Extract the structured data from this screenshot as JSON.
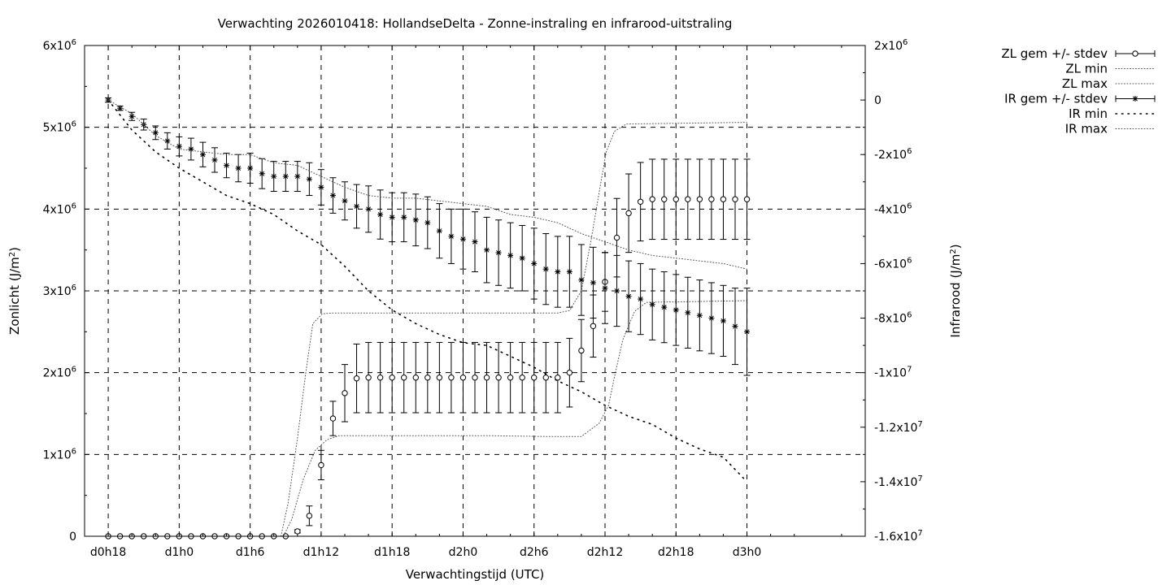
{
  "chart_data": {
    "type": "line",
    "title": "Verwachting 2026010418: HollandseDelta - Zonne-instraling en infrarood-uitstraling",
    "xlabel": "Verwachtingstijd (UTC)",
    "ylabel": "Zonlicht (J/m²)",
    "ylabel_base": "Zonlicht (J/m",
    "ylabel_end": ")",
    "y2label": "Infrarood (J/m²)",
    "y2label_base": "Infrarood (J/m",
    "y2label_end": ")",
    "grid": true,
    "legend_position": "outside-top-right",
    "x_hours_range": [
      16,
      82
    ],
    "x_ticks": [
      {
        "h": 18,
        "label": "d0h18"
      },
      {
        "h": 24,
        "label": "d1h0"
      },
      {
        "h": 30,
        "label": "d1h6"
      },
      {
        "h": 36,
        "label": "d1h12"
      },
      {
        "h": 42,
        "label": "d1h18"
      },
      {
        "h": 48,
        "label": "d2h0"
      },
      {
        "h": 54,
        "label": "d2h6"
      },
      {
        "h": 60,
        "label": "d2h12"
      },
      {
        "h": 66,
        "label": "d2h18"
      },
      {
        "h": 72,
        "label": "d3h0"
      }
    ],
    "ylim": [
      0,
      6000000
    ],
    "y_ticks": [
      {
        "v": 0,
        "m": "0",
        "e": ""
      },
      {
        "v": 1000000,
        "m": "1x10",
        "e": "6"
      },
      {
        "v": 2000000,
        "m": "2x10",
        "e": "6"
      },
      {
        "v": 3000000,
        "m": "3x10",
        "e": "6"
      },
      {
        "v": 4000000,
        "m": "4x10",
        "e": "6"
      },
      {
        "v": 5000000,
        "m": "5x10",
        "e": "6"
      },
      {
        "v": 6000000,
        "m": "6x10",
        "e": "6"
      }
    ],
    "y2lim": [
      -16000000,
      2000000
    ],
    "y2_ticks": [
      {
        "v": 2000000,
        "m": "2x10",
        "e": "6"
      },
      {
        "v": 0,
        "m": "0",
        "e": ""
      },
      {
        "v": -2000000,
        "m": "-2x10",
        "e": "6"
      },
      {
        "v": -4000000,
        "m": "-4x10",
        "e": "6"
      },
      {
        "v": -6000000,
        "m": "-6x10",
        "e": "6"
      },
      {
        "v": -8000000,
        "m": "-8x10",
        "e": "6"
      },
      {
        "v": -10000000,
        "m": "-1x10",
        "e": "7"
      },
      {
        "v": -12000000,
        "m": "-1.2x10",
        "e": "7"
      },
      {
        "v": -14000000,
        "m": "-1.4x10",
        "e": "7"
      },
      {
        "v": -16000000,
        "m": "-1.6x10",
        "e": "7"
      }
    ],
    "hours": [
      18,
      19,
      20,
      21,
      22,
      23,
      24,
      25,
      26,
      27,
      28,
      29,
      30,
      31,
      32,
      33,
      34,
      35,
      36,
      37,
      38,
      39,
      40,
      41,
      42,
      43,
      44,
      45,
      46,
      47,
      48,
      49,
      50,
      51,
      52,
      53,
      54,
      55,
      56,
      57,
      58,
      59,
      60,
      61,
      62,
      63,
      64,
      65,
      66,
      67,
      68,
      69,
      70,
      71,
      72
    ],
    "series": [
      {
        "name": "ZL gem +/- stdev",
        "axis": "y",
        "marker": "circle",
        "mean": [
          0,
          0,
          0,
          0,
          0,
          0,
          0,
          0,
          0,
          0,
          0,
          0,
          0,
          0,
          0,
          0,
          60000,
          250000,
          870000,
          1440000,
          1750000,
          1930000,
          1940000,
          1940000,
          1940000,
          1940000,
          1940000,
          1940000,
          1940000,
          1940000,
          1940000,
          1940000,
          1940000,
          1940000,
          1940000,
          1940000,
          1940000,
          1940000,
          1940000,
          2000000,
          2270000,
          2570000,
          3110000,
          3650000,
          3950000,
          4090000,
          4120000,
          4120000,
          4120000,
          4120000,
          4120000,
          4120000,
          4120000,
          4120000,
          4120000
        ],
        "stdev": [
          0,
          0,
          0,
          0,
          0,
          0,
          0,
          0,
          0,
          0,
          0,
          0,
          0,
          0,
          0,
          0,
          20000,
          120000,
          180000,
          210000,
          350000,
          420000,
          430000,
          430000,
          430000,
          430000,
          430000,
          430000,
          430000,
          430000,
          430000,
          430000,
          430000,
          430000,
          430000,
          430000,
          430000,
          430000,
          430000,
          420000,
          380000,
          380000,
          360000,
          480000,
          480000,
          480000,
          490000,
          490000,
          490000,
          490000,
          490000,
          490000,
          490000,
          490000,
          490000
        ]
      },
      {
        "name": "ZL min",
        "axis": "y",
        "style": "dotted",
        "points": [
          [
            16,
            0
          ],
          [
            32,
            0
          ],
          [
            32.8,
            0
          ],
          [
            33.5,
            200000
          ],
          [
            34.5,
            700000
          ],
          [
            35.5,
            1050000
          ],
          [
            36.5,
            1180000
          ],
          [
            37.5,
            1230000
          ],
          [
            50,
            1230000
          ],
          [
            55,
            1220000
          ],
          [
            58,
            1220000
          ],
          [
            59.5,
            1380000
          ],
          [
            60.3,
            1600000
          ],
          [
            60.8,
            1950000
          ],
          [
            61.5,
            2400000
          ],
          [
            62.5,
            2750000
          ],
          [
            63.5,
            2860000
          ],
          [
            72,
            2880000
          ]
        ]
      },
      {
        "name": "ZL max",
        "axis": "y",
        "style": "dotted",
        "points": [
          [
            16,
            0
          ],
          [
            32,
            0
          ],
          [
            32.6,
            0
          ],
          [
            33.2,
            400000
          ],
          [
            34,
            1200000
          ],
          [
            34.7,
            2000000
          ],
          [
            35.3,
            2600000
          ],
          [
            36.1,
            2720000
          ],
          [
            37,
            2730000
          ],
          [
            50,
            2730000
          ],
          [
            56,
            2730000
          ],
          [
            57,
            2760000
          ],
          [
            58,
            3000000
          ],
          [
            58.8,
            3600000
          ],
          [
            59.5,
            4200000
          ],
          [
            60.1,
            4700000
          ],
          [
            60.8,
            4950000
          ],
          [
            61.8,
            5040000
          ],
          [
            72,
            5060000
          ]
        ]
      },
      {
        "name": "IR gem +/- stdev",
        "axis": "y2",
        "marker": "star",
        "mean": [
          0,
          -300000,
          -600000,
          -900000,
          -1200000,
          -1500000,
          -1700000,
          -1800000,
          -2000000,
          -2200000,
          -2400000,
          -2500000,
          -2500000,
          -2700000,
          -2800000,
          -2800000,
          -2800000,
          -2900000,
          -3200000,
          -3500000,
          -3700000,
          -3900000,
          -4000000,
          -4200000,
          -4300000,
          -4300000,
          -4400000,
          -4500000,
          -4800000,
          -5000000,
          -5100000,
          -5200000,
          -5500000,
          -5600000,
          -5700000,
          -5800000,
          -6000000,
          -6200000,
          -6300000,
          -6300000,
          -6600000,
          -6700000,
          -6900000,
          -7000000,
          -7200000,
          -7300000,
          -7500000,
          -7600000,
          -7700000,
          -7800000,
          -7900000,
          -8000000,
          -8100000,
          -8300000,
          -8500000
        ],
        "stdev": [
          80000,
          80000,
          150000,
          200000,
          250000,
          300000,
          350000,
          400000,
          450000,
          450000,
          450000,
          500000,
          550000,
          550000,
          550000,
          550000,
          550000,
          600000,
          650000,
          650000,
          700000,
          800000,
          850000,
          900000,
          900000,
          900000,
          950000,
          950000,
          1000000,
          1000000,
          1100000,
          1100000,
          1200000,
          1200000,
          1200000,
          1200000,
          1300000,
          1300000,
          1300000,
          1300000,
          1300000,
          1300000,
          1300000,
          1300000,
          1300000,
          1300000,
          1300000,
          1300000,
          1300000,
          1300000,
          1300000,
          1300000,
          1300000,
          1400000,
          1600000
        ]
      },
      {
        "name": "IR min",
        "axis": "y2",
        "style": "sparse-dotted",
        "points": [
          [
            18,
            0
          ],
          [
            20,
            -1100000
          ],
          [
            22,
            -1900000
          ],
          [
            24,
            -2500000
          ],
          [
            26,
            -3000000
          ],
          [
            28,
            -3500000
          ],
          [
            30,
            -3800000
          ],
          [
            32,
            -4200000
          ],
          [
            34,
            -4800000
          ],
          [
            36,
            -5300000
          ],
          [
            38,
            -6100000
          ],
          [
            40,
            -7000000
          ],
          [
            42,
            -7700000
          ],
          [
            44,
            -8200000
          ],
          [
            46,
            -8600000
          ],
          [
            48,
            -8900000
          ],
          [
            50,
            -9000000
          ],
          [
            52,
            -9400000
          ],
          [
            54,
            -9800000
          ],
          [
            56,
            -10300000
          ],
          [
            58,
            -10700000
          ],
          [
            60,
            -11200000
          ],
          [
            62,
            -11600000
          ],
          [
            64,
            -11900000
          ],
          [
            66,
            -12400000
          ],
          [
            68,
            -12800000
          ],
          [
            70,
            -13100000
          ],
          [
            72,
            -14000000
          ]
        ]
      },
      {
        "name": "IR max",
        "axis": "y2",
        "style": "dotted",
        "points": [
          [
            18,
            0
          ],
          [
            20,
            -500000
          ],
          [
            22,
            -1300000
          ],
          [
            24,
            -1800000
          ],
          [
            26,
            -1900000
          ],
          [
            28,
            -2000000
          ],
          [
            30,
            -2000000
          ],
          [
            32,
            -2300000
          ],
          [
            34,
            -2400000
          ],
          [
            36,
            -2800000
          ],
          [
            38,
            -3200000
          ],
          [
            40,
            -3500000
          ],
          [
            42,
            -3600000
          ],
          [
            44,
            -3600000
          ],
          [
            46,
            -3700000
          ],
          [
            48,
            -3800000
          ],
          [
            50,
            -3900000
          ],
          [
            52,
            -4200000
          ],
          [
            54,
            -4300000
          ],
          [
            56,
            -4500000
          ],
          [
            58,
            -4900000
          ],
          [
            60,
            -5200000
          ],
          [
            62,
            -5500000
          ],
          [
            64,
            -5700000
          ],
          [
            66,
            -5800000
          ],
          [
            68,
            -5900000
          ],
          [
            70,
            -6000000
          ],
          [
            72,
            -6200000
          ]
        ]
      }
    ]
  }
}
